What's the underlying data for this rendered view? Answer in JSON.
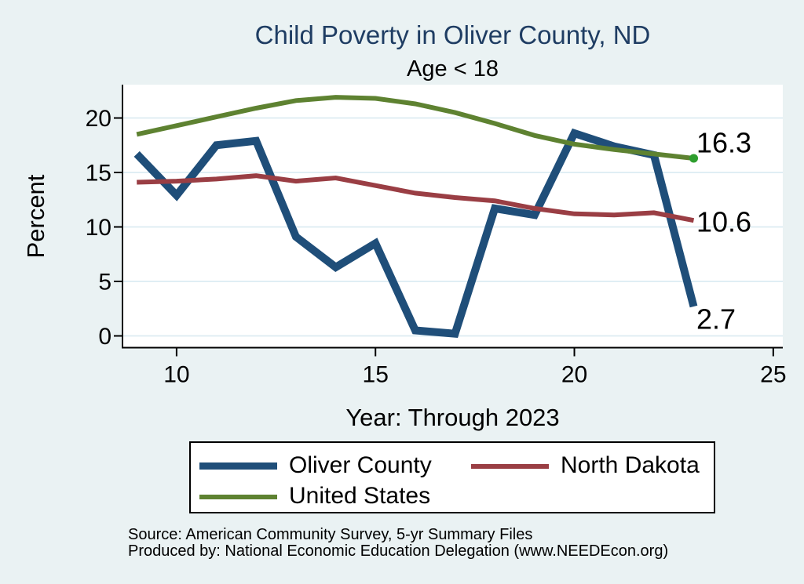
{
  "title": "Child Poverty in Oliver County, ND",
  "subtitle": "Age < 18",
  "source_line": "Source: American Community Survey, 5-yr Summary Files",
  "produced_line": "Produced by: National Economic Education Delegation (www.NEEDEcon.org)",
  "colors": {
    "background": "#eaf2f3",
    "plot_background": "#ffffff",
    "gridline": "#dcebf2",
    "axis": "#000000",
    "title_text": "#1f3d63",
    "end_dot": "#2e9e2e"
  },
  "chart_data": {
    "type": "line",
    "title": "Child Poverty in Oliver County, ND",
    "subtitle": "Age < 18",
    "xlabel": "Year: Through 2023",
    "ylabel": "Percent",
    "grid": true,
    "legend_position": "bottom",
    "x": [
      9,
      10,
      11,
      12,
      13,
      14,
      15,
      16,
      17,
      18,
      19,
      20,
      21,
      22,
      23
    ],
    "x_ticks": [
      10,
      15,
      20,
      25
    ],
    "y_ticks": [
      0,
      5,
      10,
      15,
      20
    ],
    "xlim": [
      8.64,
      25.24
    ],
    "ylim": [
      -1.08,
      23.06
    ],
    "series": [
      {
        "name": "Oliver County",
        "color": "#1f4e79",
        "line_width": 10,
        "values": [
          16.7,
          12.9,
          17.5,
          17.9,
          9.1,
          6.3,
          8.5,
          0.5,
          0.2,
          11.7,
          11.1,
          18.6,
          17.4,
          16.6,
          2.7
        ],
        "end_label": "2.7",
        "end_label_dy": 16,
        "end_dot": false
      },
      {
        "name": "North Dakota",
        "color": "#9a3e44",
        "line_width": 6,
        "values": [
          14.1,
          14.2,
          14.4,
          14.7,
          14.2,
          14.5,
          13.8,
          13.1,
          12.7,
          12.4,
          11.7,
          11.2,
          11.1,
          11.3,
          10.6
        ],
        "end_label": "10.6",
        "end_label_dy": 2,
        "end_dot": false
      },
      {
        "name": "United States",
        "color": "#5e8231",
        "line_width": 6,
        "values": [
          18.5,
          19.3,
          20.1,
          20.9,
          21.6,
          21.9,
          21.8,
          21.3,
          20.5,
          19.5,
          18.4,
          17.6,
          17.1,
          16.7,
          16.3
        ],
        "end_label": "16.3",
        "end_label_dy": -20,
        "end_dot": true
      }
    ]
  }
}
